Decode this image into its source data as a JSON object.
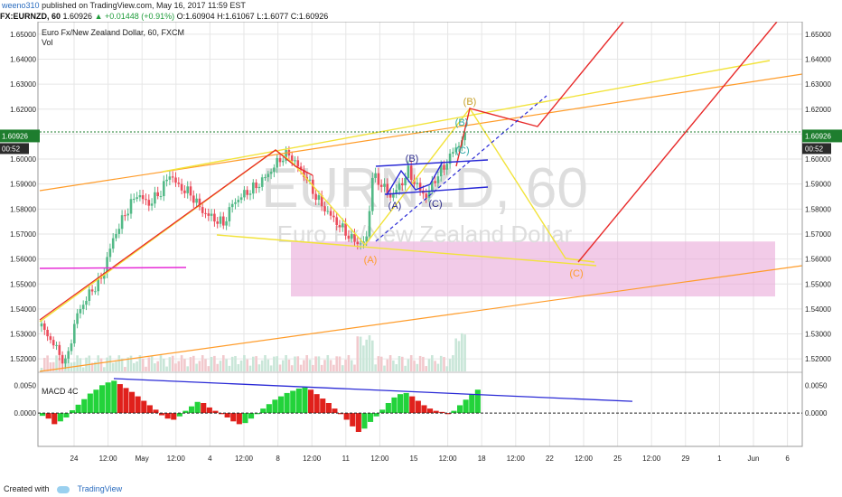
{
  "header": {
    "user": "weeno310",
    "published": "published on TradingView.com, May 16, 2017 11:59 EST",
    "quote": {
      "symbol": "FX:EURNZD, 60",
      "price": "1.60926",
      "change": "+0.01448 (+0.91%)",
      "open": "O:1.60904",
      "high": "H:1.61067",
      "low": "L:1.6077",
      "close": "C:1.60926"
    }
  },
  "pane_title": "Euro Fx/New Zealand Dollar, 60, FXCM",
  "vol_label": "Vol",
  "watermark": {
    "symbol": "EURNZD, 60",
    "name": "Euro Fx/New Zealand Dollar"
  },
  "current_price": {
    "value": "1.60926",
    "countdown": "00:52"
  },
  "chart_data": [
    {
      "type": "candlestick",
      "title": "Euro Fx/New Zealand Dollar, 60, FXCM",
      "ylim": [
        1.515,
        1.655
      ],
      "y_ticks": [
        "1.52000",
        "1.53000",
        "1.54000",
        "1.55000",
        "1.56000",
        "1.57000",
        "1.58000",
        "1.59000",
        "1.60000",
        "1.61000",
        "1.62000",
        "1.63000",
        "1.64000",
        "1.65000"
      ],
      "x_ticks": [
        "24",
        "12:00",
        "May",
        "12:00",
        "4",
        "12:00",
        "8",
        "12:00",
        "11",
        "12:00",
        "15",
        "12:00",
        "18",
        "12:00",
        "22",
        "12:00",
        "25",
        "12:00",
        "29",
        "1",
        "Jun",
        "6"
      ],
      "price_path": [
        [
          0,
          1.533
        ],
        [
          4,
          1.526
        ],
        [
          8,
          1.518
        ],
        [
          12,
          1.538
        ],
        [
          16,
          1.546
        ],
        [
          20,
          1.552
        ],
        [
          24,
          1.568
        ],
        [
          28,
          1.578
        ],
        [
          32,
          1.586
        ],
        [
          36,
          1.582
        ],
        [
          40,
          1.587
        ],
        [
          43,
          1.594
        ],
        [
          46,
          1.589
        ],
        [
          50,
          1.586
        ],
        [
          54,
          1.579
        ],
        [
          58,
          1.576
        ],
        [
          61,
          1.574
        ],
        [
          64,
          1.582
        ],
        [
          68,
          1.586
        ],
        [
          72,
          1.589
        ],
        [
          76,
          1.594
        ],
        [
          80,
          1.6
        ],
        [
          83,
          1.602
        ],
        [
          86,
          1.597
        ],
        [
          89,
          1.592
        ],
        [
          92,
          1.585
        ],
        [
          95,
          1.58
        ],
        [
          98,
          1.576
        ],
        [
          101,
          1.572
        ],
        [
          104,
          1.568
        ],
        [
          107,
          1.566
        ],
        [
          109,
          1.568
        ],
        [
          111,
          1.593
        ],
        [
          114,
          1.59
        ],
        [
          117,
          1.585
        ],
        [
          120,
          1.589
        ],
        [
          123,
          1.595
        ],
        [
          126,
          1.589
        ],
        [
          129,
          1.585
        ],
        [
          132,
          1.592
        ],
        [
          135,
          1.597
        ],
        [
          138,
          1.603
        ],
        [
          140,
          1.606
        ],
        [
          142,
          1.609
        ]
      ],
      "elliott_labels": [
        "(A)",
        "(B)",
        "(C)",
        "(A)",
        "(B)",
        "(C)",
        "(B)",
        "(C)",
        "(B)",
        "(C)"
      ],
      "zone": {
        "from": 1.545,
        "to": 1.567
      }
    },
    {
      "type": "bar",
      "title": "MACD 4C",
      "ylim": [
        -0.006,
        0.007
      ],
      "y_ticks": [
        "0.0050",
        "0.0000"
      ],
      "histogram": [
        -0.0005,
        -0.001,
        -0.002,
        -0.0015,
        -0.0008,
        0.0005,
        0.0015,
        0.0025,
        0.0035,
        0.0042,
        0.005,
        0.0055,
        0.0058,
        0.0052,
        0.0045,
        0.0038,
        0.003,
        0.0022,
        0.0014,
        0.0006,
        -0.0004,
        -0.001,
        -0.0012,
        -0.0006,
        0.0004,
        0.0012,
        0.002,
        0.0018,
        0.001,
        0.0004,
        -0.0002,
        -0.0008,
        -0.0015,
        -0.002,
        -0.0018,
        -0.001,
        -0.0002,
        0.0008,
        0.0016,
        0.0024,
        0.003,
        0.0036,
        0.004,
        0.0044,
        0.0046,
        0.0042,
        0.0034,
        0.0026,
        0.0018,
        0.0008,
        -0.0002,
        -0.0012,
        -0.0024,
        -0.0034,
        -0.0028,
        -0.0016,
        -0.0006,
        0.0006,
        0.0018,
        0.0028,
        0.0034,
        0.0036,
        0.003,
        0.0022,
        0.0014,
        0.0008,
        0.0004,
        0.0002,
        -0.0002,
        0.0004,
        0.0014,
        0.0024,
        0.0034,
        0.0042
      ]
    }
  ],
  "colors": {
    "up": "#26a69a",
    "down": "#ef5350",
    "candle_up": "#53b987",
    "candle_down": "#eb4d5c",
    "bg": "#ffffff",
    "grid": "#e6e6e6",
    "macd_up": "#23d33b",
    "macd_down": "#e0211c",
    "zone": "#e9a8d9",
    "yellow": "#f2e33a",
    "orange": "#ff9c2a",
    "red": "#e82a2a",
    "blue": "#2a2ad6",
    "price_line": "#1e7d2e"
  },
  "footer": {
    "created_with": "Created with",
    "brand": "TradingView"
  }
}
